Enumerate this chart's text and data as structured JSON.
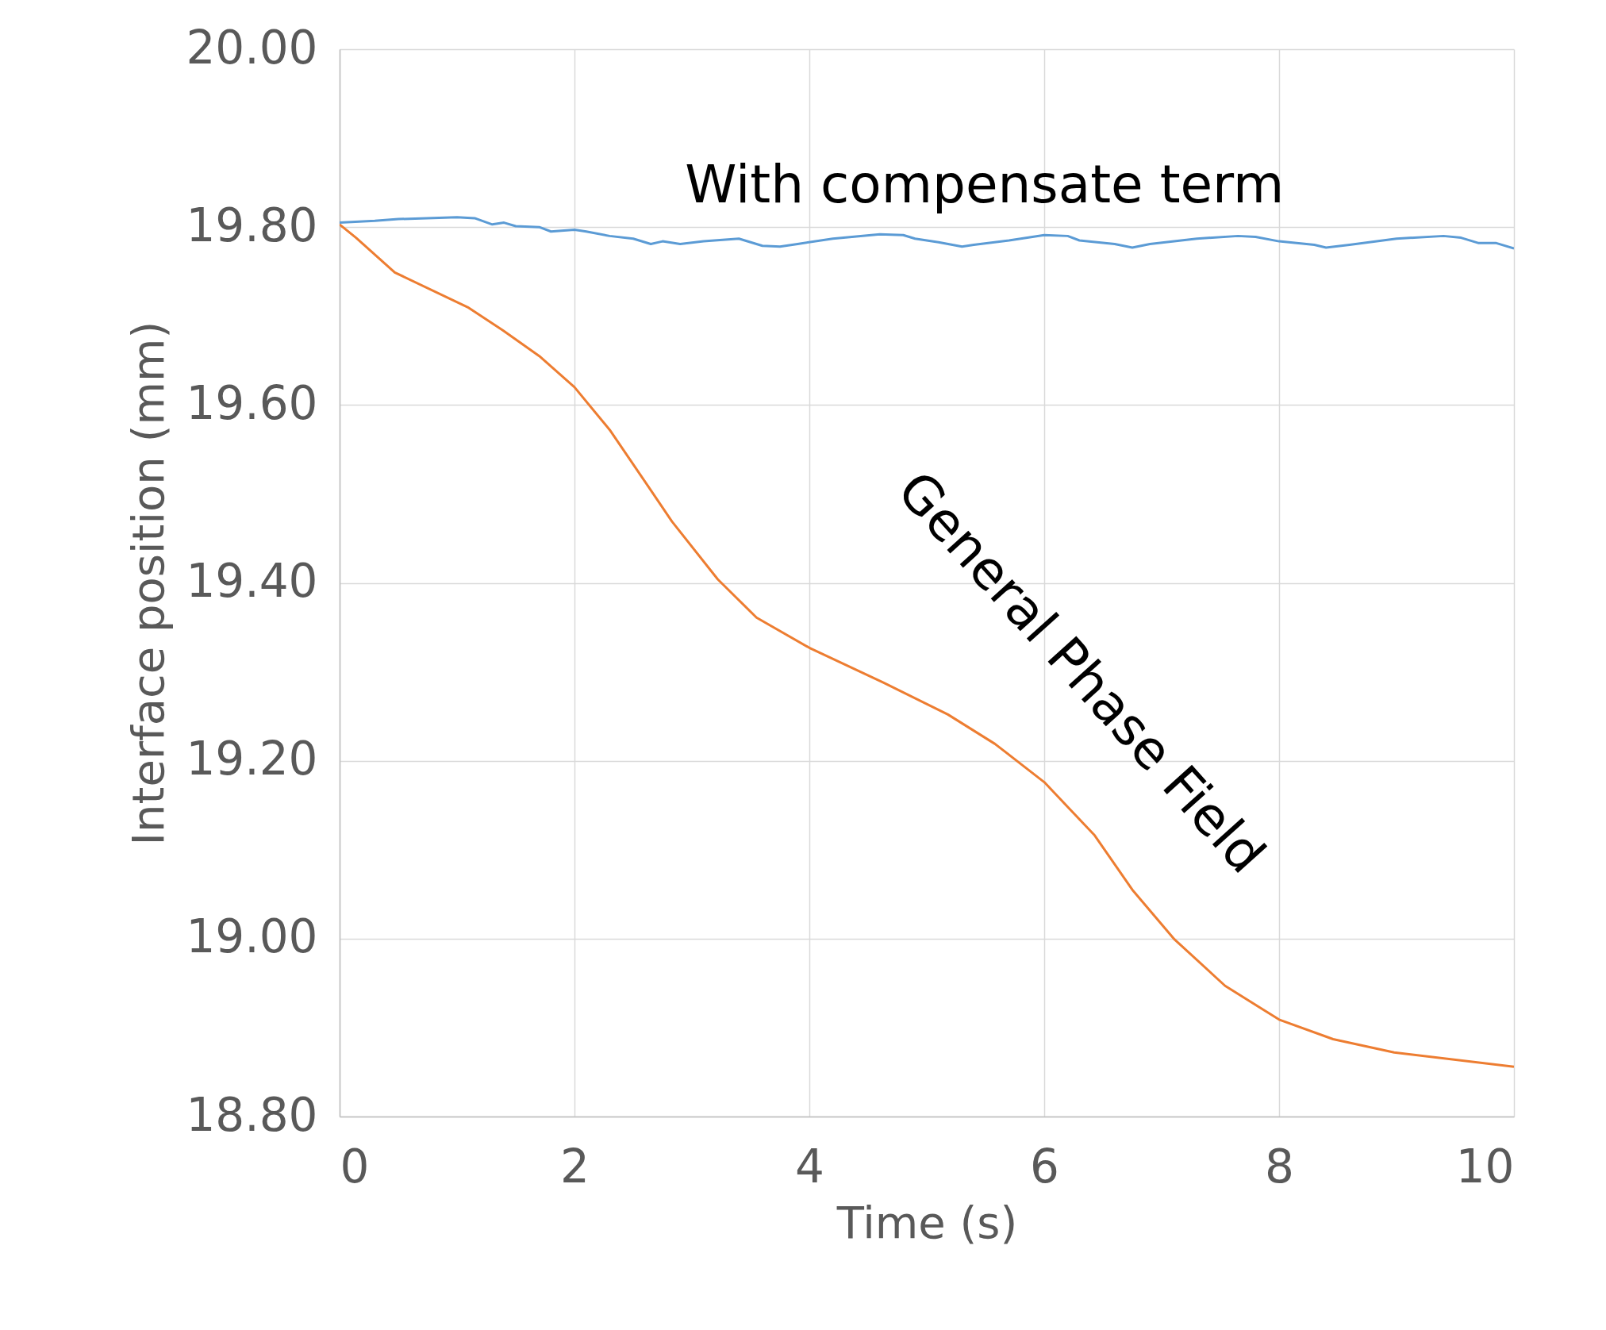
{
  "chart_data": {
    "type": "line",
    "xlabel": "Time (s)",
    "ylabel": "Interface position (mm)",
    "xlim": [
      0,
      10
    ],
    "xticks": [
      0,
      2,
      4,
      6,
      8,
      10
    ],
    "ylim": [
      18.8,
      20
    ],
    "yticks": [
      {
        "value": 18.8,
        "label": "18.80"
      },
      {
        "value": 19,
        "label": "19.00"
      },
      {
        "value": 19.2,
        "label": "19.20"
      },
      {
        "value": 19.4,
        "label": "19.40"
      },
      {
        "value": 19.6,
        "label": "19.60"
      },
      {
        "value": 19.8,
        "label": "19.80"
      },
      {
        "value": 20,
        "label": "20.00"
      }
    ],
    "grid": true,
    "series": [
      {
        "name": "With compensate term",
        "color": "#5b9bd5",
        "x": [
          0,
          0.3,
          0.5,
          1.0,
          1.15,
          1.3,
          1.4,
          1.5,
          1.7,
          1.8,
          2.0,
          2.1,
          2.3,
          2.5,
          2.65,
          2.75,
          2.9,
          3.1,
          3.4,
          3.6,
          3.75,
          3.9,
          4.2,
          4.6,
          4.8,
          4.9,
          5.1,
          5.3,
          5.4,
          5.7,
          6.0,
          6.2,
          6.3,
          6.6,
          6.75,
          6.9,
          7.3,
          7.65,
          7.8,
          8.0,
          8.3,
          8.4,
          8.6,
          9.0,
          9.4,
          9.55,
          9.7,
          9.85,
          10
        ],
        "values": [
          19.805,
          19.807,
          19.809,
          19.811,
          19.81,
          19.803,
          19.805,
          19.801,
          19.8,
          19.795,
          19.797,
          19.795,
          19.79,
          19.787,
          19.781,
          19.784,
          19.781,
          19.784,
          19.787,
          19.779,
          19.778,
          19.781,
          19.787,
          19.792,
          19.791,
          19.787,
          19.783,
          19.778,
          19.78,
          19.785,
          19.791,
          19.79,
          19.785,
          19.781,
          19.777,
          19.781,
          19.787,
          19.79,
          19.789,
          19.784,
          19.78,
          19.777,
          19.78,
          19.787,
          19.79,
          19.788,
          19.782,
          19.782,
          19.776
        ]
      },
      {
        "name": "General Phase Field",
        "color": "#ed7d31",
        "x": [
          0,
          0.14,
          0.47,
          1.09,
          1.39,
          1.71,
          2.0,
          2.3,
          2.63,
          2.83,
          3.22,
          3.55,
          4.0,
          4.63,
          5.18,
          5.58,
          6.0,
          6.43,
          6.75,
          7.11,
          7.54,
          8.0,
          8.46,
          8.98,
          10
        ],
        "values": [
          19.803,
          19.788,
          19.749,
          19.71,
          19.684,
          19.654,
          19.62,
          19.572,
          19.508,
          19.469,
          19.404,
          19.361,
          19.327,
          19.288,
          19.252,
          19.219,
          19.176,
          19.116,
          19.055,
          18.999,
          18.947,
          18.909,
          18.887,
          18.872,
          18.856
        ]
      }
    ]
  }
}
